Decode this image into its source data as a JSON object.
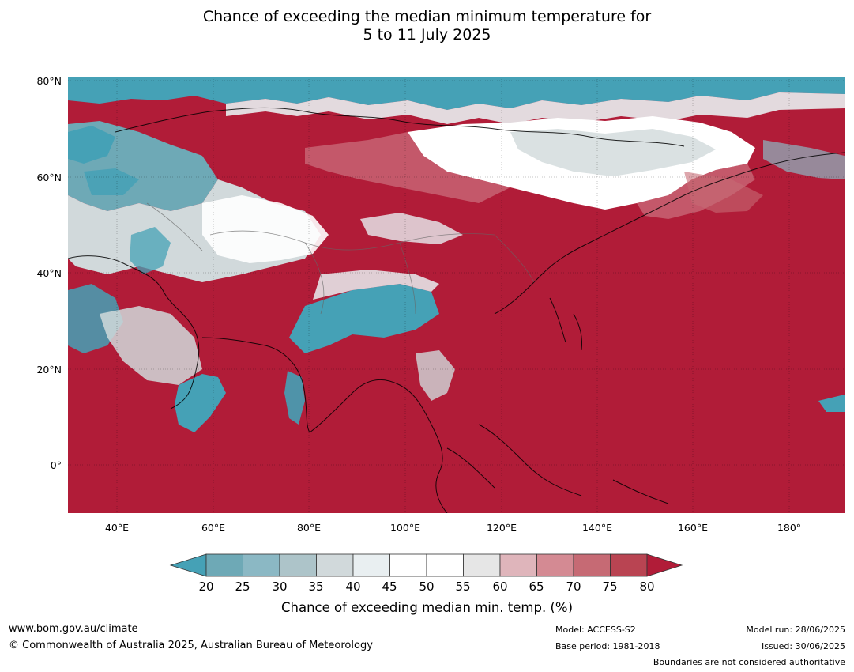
{
  "title": {
    "line1": "Chance of exceeding the median minimum temperature for",
    "line2": "5 to 11 July 2025"
  },
  "map": {
    "y_ticks": [
      "80°N",
      "60°N",
      "40°N",
      "20°N",
      "0°"
    ],
    "x_ticks": [
      "40°E",
      "60°E",
      "80°E",
      "100°E",
      "120°E",
      "140°E",
      "160°E",
      "180°"
    ]
  },
  "colorbar": {
    "labels": [
      "20",
      "25",
      "30",
      "35",
      "40",
      "45",
      "50",
      "55",
      "60",
      "65",
      "70",
      "75",
      "80"
    ],
    "colors": [
      "#45a1b6",
      "#6ea9b6",
      "#8bb8c4",
      "#adc4c9",
      "#d1d9db",
      "#e9eff1",
      "#ffffff",
      "#ffffff",
      "#e6e6e6",
      "#dfb5bb",
      "#d48a93",
      "#c66a74",
      "#b94452",
      "#b11c38"
    ],
    "title": "Chance of exceeding median min. temp. (%)"
  },
  "footer": {
    "website": "www.bom.gov.au/climate",
    "copyright": "© Commonwealth of Australia 2025, Australian Bureau of Meteorology",
    "model": "Model: ACCESS-S2",
    "base_period": "Base period: 1981-2018",
    "model_run": "Model run: 28/06/2025",
    "issued": "Issued: 30/06/2025",
    "boundaries": "Boundaries are not considered authoritative"
  }
}
